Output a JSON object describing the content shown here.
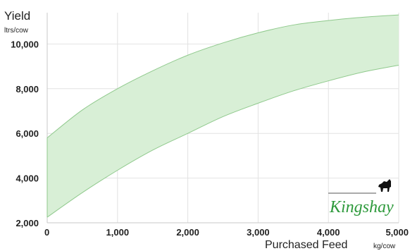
{
  "chart_data": {
    "type": "area",
    "title": "",
    "ylabel": "Yield",
    "ylabel_unit": "ltrs/cow",
    "xlabel": "Purchased Feed",
    "xlabel_unit": "kg/cow",
    "xlim": [
      0,
      5000
    ],
    "ylim": [
      2000,
      11400
    ],
    "x_ticks": [
      "0",
      "1,000",
      "2,000",
      "3,000",
      "4,000",
      "5,000"
    ],
    "y_ticks": [
      "2,000",
      "4,000",
      "6,000",
      "8,000",
      "10,000"
    ],
    "grid": true,
    "band": {
      "x": [
        0,
        500,
        1000,
        1500,
        2000,
        2500,
        3000,
        3500,
        4000,
        4500,
        5000
      ],
      "upper": [
        5800,
        7050,
        8000,
        8800,
        9500,
        10050,
        10500,
        10850,
        11050,
        11200,
        11300
      ],
      "lower": [
        2250,
        3350,
        4350,
        5250,
        6000,
        6750,
        7350,
        7900,
        8350,
        8750,
        9050
      ]
    },
    "band_fill": "#d8efd6",
    "band_stroke": "#8fc98c"
  },
  "logo": {
    "text": "Kingshay",
    "color": "#2e9a3c"
  }
}
